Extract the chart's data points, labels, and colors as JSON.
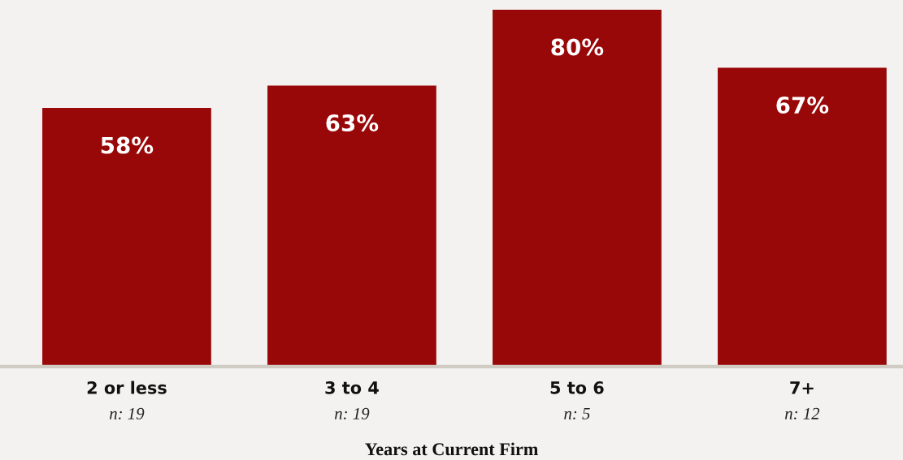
{
  "chart_data": {
    "type": "bar",
    "xlabel": "Years at Current Firm",
    "categories": [
      "2 or less\nn: 19",
      "3 to 4\nn: 19",
      "5 to 6\nn: 5",
      "7+\nn: 12"
    ],
    "values": [
      58,
      63,
      80,
      67
    ],
    "value_labels": [
      "58%",
      "63%",
      "80%",
      "67%"
    ],
    "color": "#990808",
    "grid": false,
    "legend": false
  }
}
